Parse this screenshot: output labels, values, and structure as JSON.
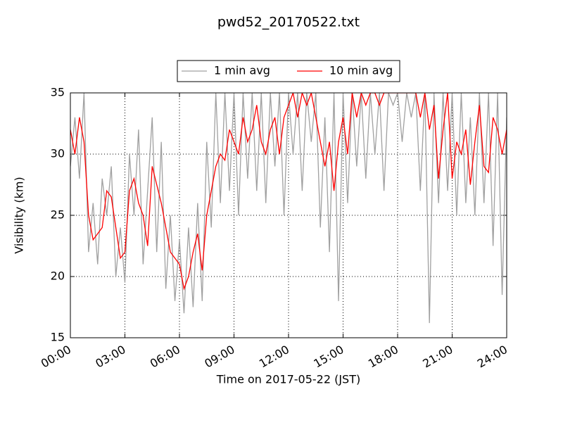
{
  "chart_data": {
    "type": "line",
    "title": "pwd52_20170522.txt",
    "xlabel": "Time on 2017-05-22 (JST)",
    "ylabel": "Visibility (km)",
    "x": [
      0,
      0.25,
      0.5,
      0.75,
      1,
      1.25,
      1.5,
      1.75,
      2,
      2.25,
      2.5,
      2.75,
      3,
      3.25,
      3.5,
      3.75,
      4,
      4.25,
      4.5,
      4.75,
      5,
      5.25,
      5.5,
      5.75,
      6,
      6.25,
      6.5,
      6.75,
      7,
      7.25,
      7.5,
      7.75,
      8,
      8.25,
      8.5,
      8.75,
      9,
      9.25,
      9.5,
      9.75,
      10,
      10.25,
      10.5,
      10.75,
      11,
      11.25,
      11.5,
      11.75,
      12,
      12.25,
      12.5,
      12.75,
      13,
      13.25,
      13.5,
      13.75,
      14,
      14.25,
      14.5,
      14.75,
      15,
      15.25,
      15.5,
      15.75,
      16,
      16.25,
      16.5,
      16.75,
      17,
      17.25,
      17.5,
      17.75,
      18,
      18.25,
      18.5,
      18.75,
      19,
      19.25,
      19.5,
      19.75,
      20,
      20.25,
      20.5,
      20.75,
      21,
      21.25,
      21.5,
      21.75,
      22,
      22.25,
      22.5,
      22.75,
      23,
      23.25,
      23.5,
      23.75,
      24
    ],
    "series": [
      {
        "name": "1 min avg",
        "color": "#a0a0a0",
        "values": [
          29,
          33,
          28,
          35,
          22,
          26,
          21,
          28,
          25,
          29,
          20,
          24,
          19.5,
          30,
          25,
          32,
          21,
          27,
          33,
          22,
          31,
          19,
          25,
          18,
          23,
          17,
          24,
          17.5,
          26,
          18,
          31,
          24,
          35,
          26,
          35,
          27,
          35,
          25,
          35,
          28,
          35,
          27,
          35,
          26,
          35,
          29,
          35,
          25,
          35,
          30,
          35,
          27,
          35,
          31,
          35,
          24,
          33,
          22,
          35,
          18,
          35,
          26,
          35,
          29,
          35,
          28,
          35,
          30,
          35,
          27,
          35,
          34,
          35,
          31,
          35,
          33,
          35,
          27,
          35,
          16.2,
          35,
          26,
          35,
          27,
          35,
          25,
          35,
          26,
          33,
          25,
          35,
          26,
          35,
          22.5,
          35,
          18.5,
          33
        ]
      },
      {
        "name": "10 min avg",
        "color": "#ff0000",
        "values": [
          32,
          30,
          33,
          31,
          25,
          23,
          23.5,
          24,
          27,
          26.5,
          24,
          21.5,
          22,
          27,
          28,
          26,
          25,
          22.5,
          29,
          27.5,
          26,
          24,
          22,
          21.5,
          21,
          19,
          20,
          22,
          23.5,
          20.5,
          25,
          27,
          29,
          30,
          29.5,
          32,
          31,
          30,
          33,
          31,
          32,
          34,
          31,
          30,
          32,
          33,
          30,
          33,
          34,
          35,
          33,
          35,
          34,
          35,
          33,
          31,
          29,
          31,
          27,
          31,
          33,
          30,
          35,
          33,
          35,
          34,
          35,
          35,
          34,
          35,
          35,
          35,
          35,
          35,
          35,
          35,
          35,
          33,
          35,
          32,
          34,
          28,
          32,
          35,
          28,
          31,
          30,
          32,
          27.5,
          31,
          34,
          29,
          28.5,
          33,
          32,
          30,
          32
        ]
      }
    ],
    "xlim": [
      0,
      24
    ],
    "xticks": [
      {
        "value": 0,
        "label": "00:00"
      },
      {
        "value": 3,
        "label": "03:00"
      },
      {
        "value": 6,
        "label": "06:00"
      },
      {
        "value": 9,
        "label": "09:00"
      },
      {
        "value": 12,
        "label": "12:00"
      },
      {
        "value": 15,
        "label": "15:00"
      },
      {
        "value": 18,
        "label": "18:00"
      },
      {
        "value": 21,
        "label": "21:00"
      },
      {
        "value": 24,
        "label": "24:00"
      }
    ],
    "ylim": [
      15,
      35
    ],
    "yticks": [
      15,
      20,
      25,
      30,
      35
    ],
    "grid": true,
    "legend": "top"
  }
}
